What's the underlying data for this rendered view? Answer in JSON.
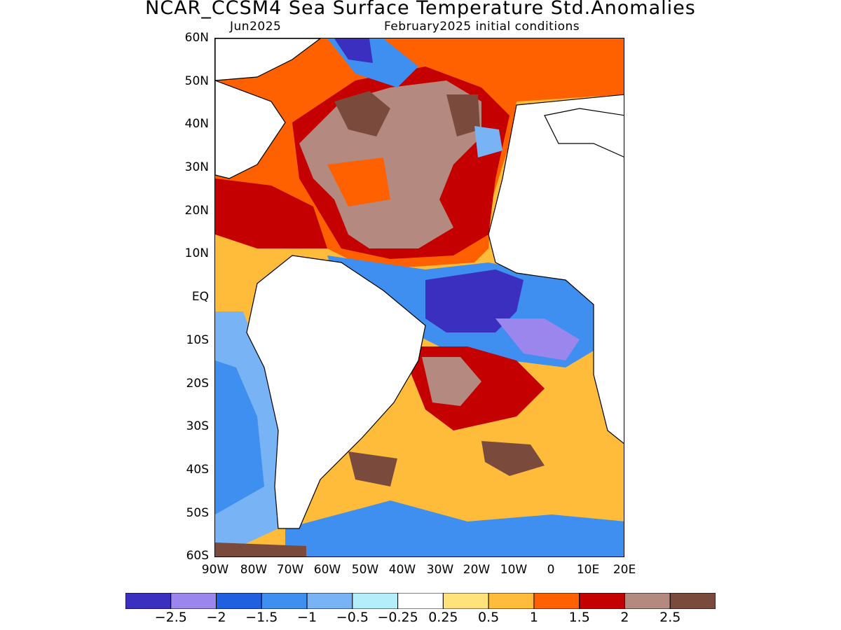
{
  "title": "NCAR_CCSM4 Sea Surface Temperature Std.Anomalies",
  "subtitle_left": "Jun2025",
  "subtitle_right": "February2025 initial conditions",
  "lat_labels": [
    "60N",
    "50N",
    "40N",
    "30N",
    "20N",
    "10N",
    "EQ",
    "10S",
    "20S",
    "30S",
    "40S",
    "50S",
    "60S"
  ],
  "lon_labels": [
    "90W",
    "80W",
    "70W",
    "60W",
    "50W",
    "40W",
    "30W",
    "20W",
    "10W",
    "0",
    "10E",
    "20E"
  ],
  "colorbar": {
    "colors": [
      "#3b2fbf",
      "#9b86ee",
      "#1f5fe0",
      "#3e8ff0",
      "#78b4f5",
      "#b4eefa",
      "#ffffff",
      "#ffe27a",
      "#ffbb3a",
      "#ff6000",
      "#c40000",
      "#b48a80",
      "#7a4a3d"
    ],
    "labels": [
      "−2.5",
      "−2",
      "−1.5",
      "−1",
      "−0.5",
      "−0.25",
      "0.25",
      "0.5",
      "1",
      "1.5",
      "2",
      "2.5"
    ]
  },
  "map_regions": [
    {
      "name": "north-atlantic-warm",
      "color": "#ff6000"
    },
    {
      "name": "north-atlantic-strong",
      "color": "#c40000"
    },
    {
      "name": "north-atlantic-extreme",
      "color": "#b48a80"
    },
    {
      "name": "equatorial-cold",
      "color": "#3b2fbf"
    },
    {
      "name": "south-atlantic-warm",
      "color": "#ffbb3a"
    },
    {
      "name": "southern-ocean-cool",
      "color": "#3e8ff0"
    }
  ]
}
